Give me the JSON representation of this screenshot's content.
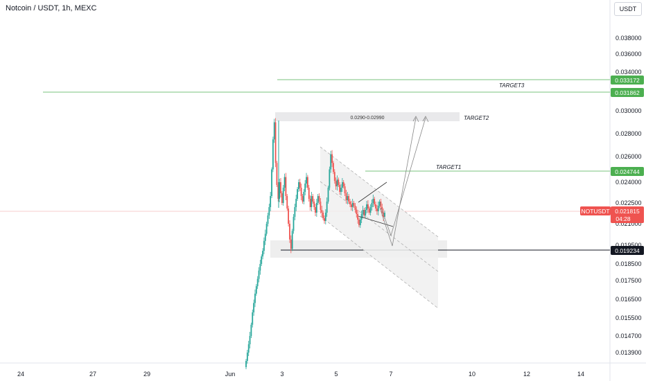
{
  "header": {
    "title": "Notcoin / USDT, 1h, MEXC",
    "currency_button": "USDT"
  },
  "colors": {
    "up": "#26a69a",
    "down": "#ef5350",
    "target_line": "#4caf50",
    "badge_green": "#4caf50",
    "badge_black": "#131722",
    "badge_red": "#ef5350",
    "current_line": "#ef9a9a"
  },
  "chart_data": {
    "type": "candlestick",
    "symbol": "NOTUSDT",
    "exchange": "MEXC",
    "interval": "1h",
    "y_axis_ticks": [
      "0.038000",
      "0.036000",
      "0.034000",
      "0.030000",
      "0.028000",
      "0.026000",
      "0.024000",
      "0.022500",
      "0.021000",
      "0.019500",
      "0.018500",
      "0.017500",
      "0.016500",
      "0.015500",
      "0.014700",
      "0.013900"
    ],
    "x_axis_ticks": [
      "24",
      "27",
      "29",
      "Jun",
      "3",
      "5",
      "7",
      "10",
      "12",
      "14"
    ],
    "price_badges": [
      {
        "value": "0.033172",
        "kind": "target"
      },
      {
        "value": "0.031862",
        "kind": "target"
      },
      {
        "value": "0.024744",
        "kind": "target"
      },
      {
        "value": "0.019234",
        "kind": "support"
      }
    ],
    "current_price": {
      "symbol": "NOTUSDT",
      "value": "0.021815",
      "countdown": "04:28"
    },
    "annotations": {
      "target1": "TARGET1",
      "target2": "TARGET2",
      "target3": "TARGET3",
      "target2_zone": "0.0290-0.02990"
    },
    "candles_approx": {
      "series": [
        0.0135,
        0.0139,
        0.0143,
        0.0147,
        0.0152,
        0.0158,
        0.0163,
        0.0168,
        0.0172,
        0.0176,
        0.0181,
        0.0185,
        0.0189,
        0.0192,
        0.0198,
        0.0203,
        0.021,
        0.0216,
        0.0222,
        0.023,
        0.025,
        0.0275,
        0.029,
        0.0255,
        0.0238,
        0.0228,
        0.024,
        0.0232,
        0.0225,
        0.0236,
        0.0244,
        0.023,
        0.0221,
        0.021,
        0.0199,
        0.0193,
        0.0205,
        0.0215,
        0.0222,
        0.0228,
        0.0235,
        0.024,
        0.0236,
        0.023,
        0.0226,
        0.0233,
        0.0239,
        0.0244,
        0.0236,
        0.0228,
        0.0222,
        0.023,
        0.0226,
        0.0222,
        0.0218,
        0.0225,
        0.023,
        0.0226,
        0.022,
        0.0218,
        0.0214,
        0.0212,
        0.0218,
        0.0226,
        0.0236,
        0.025,
        0.0262,
        0.0255,
        0.0248,
        0.0241,
        0.0237,
        0.0242,
        0.0238,
        0.0233,
        0.0236,
        0.024,
        0.0237,
        0.0232,
        0.0227,
        0.023,
        0.0226,
        0.0224,
        0.0222,
        0.0225,
        0.0223,
        0.022,
        0.0217,
        0.0213,
        0.0209,
        0.0213,
        0.0217,
        0.022,
        0.0216,
        0.022,
        0.0224,
        0.0221,
        0.0218,
        0.0222,
        0.0225,
        0.0228,
        0.0224,
        0.0221,
        0.0219,
        0.0223,
        0.0226,
        0.0222,
        0.0218,
        0.0215,
        0.0218
      ]
    }
  }
}
